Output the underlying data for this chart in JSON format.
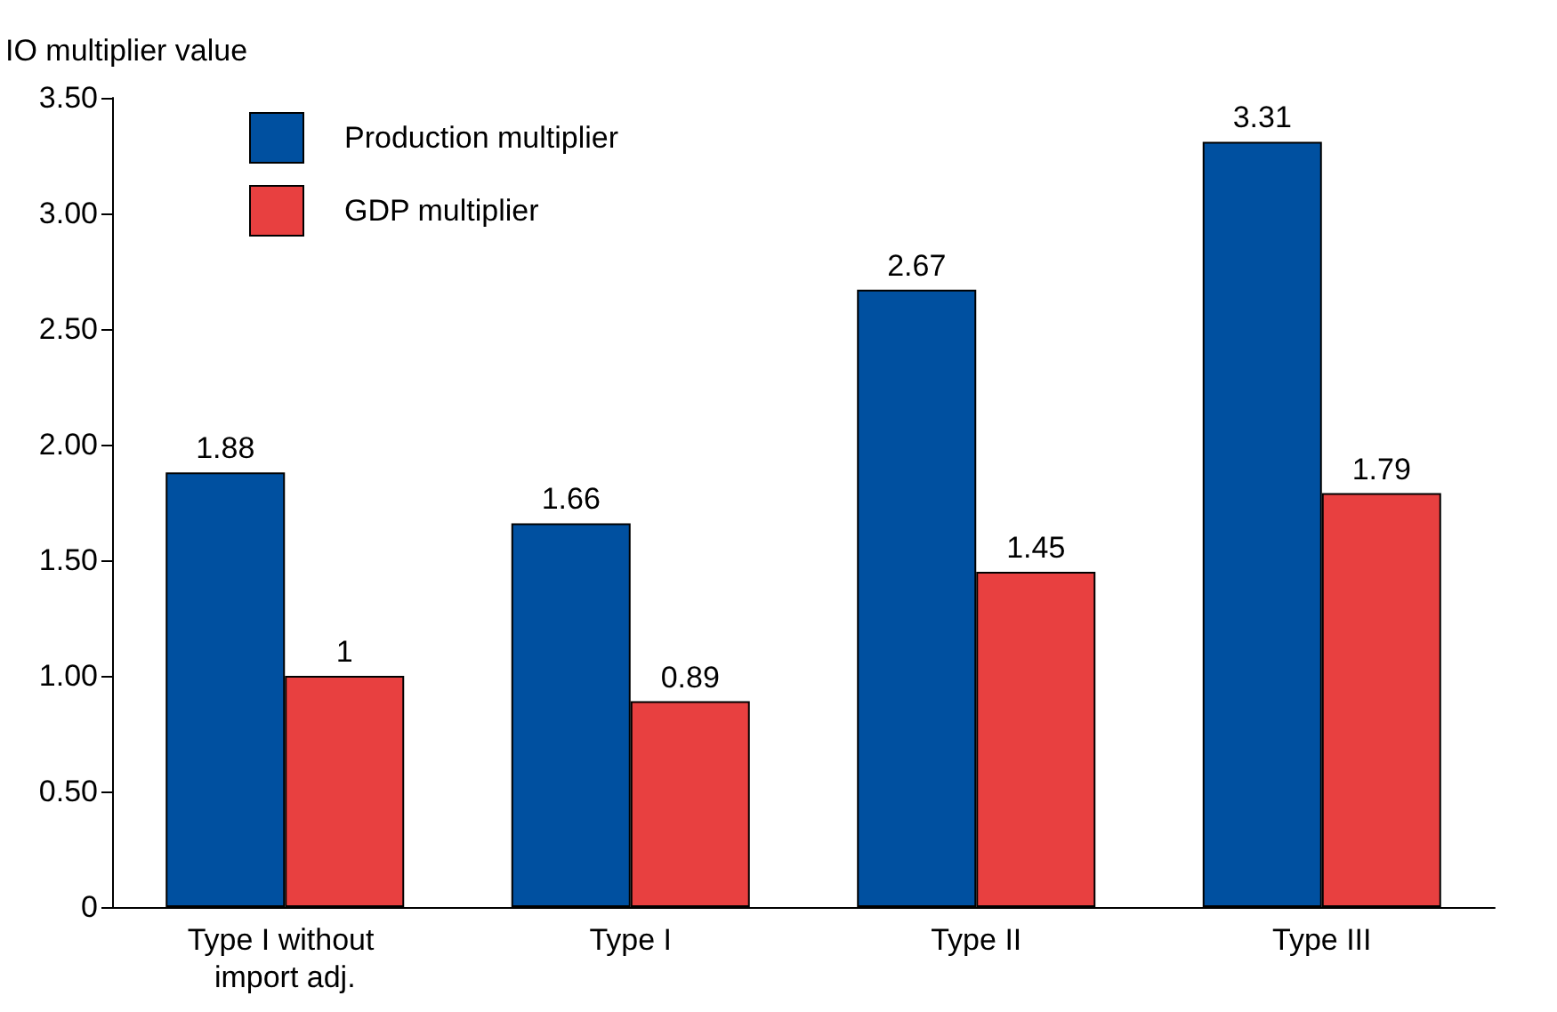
{
  "chart_data": {
    "type": "bar",
    "ylabel": "IO multiplier value",
    "categories": [
      "Type I without import adj.",
      "Type I",
      "Type II",
      "Type III"
    ],
    "series": [
      {
        "name": "Production multiplier",
        "color": "#0050a0",
        "values": [
          1.88,
          1.66,
          2.67,
          3.31
        ]
      },
      {
        "name": "GDP multiplier",
        "color": "#e84040",
        "values": [
          1,
          0.89,
          1.45,
          1.79
        ]
      }
    ],
    "ylim": [
      0,
      3.5
    ],
    "yticks": [
      0,
      {
        "value": 0.5,
        "label": "0.50"
      },
      {
        "value": 1,
        "label": "1.00"
      },
      {
        "value": 1.5,
        "label": "1.50"
      },
      {
        "value": 2,
        "label": "2.00"
      },
      {
        "value": 2.5,
        "label": "2.50"
      },
      {
        "value": 3,
        "label": "3.00"
      },
      {
        "value": 3.5,
        "label": "3.50"
      }
    ],
    "data_labels": true,
    "legend": "top left",
    "grid": false
  }
}
